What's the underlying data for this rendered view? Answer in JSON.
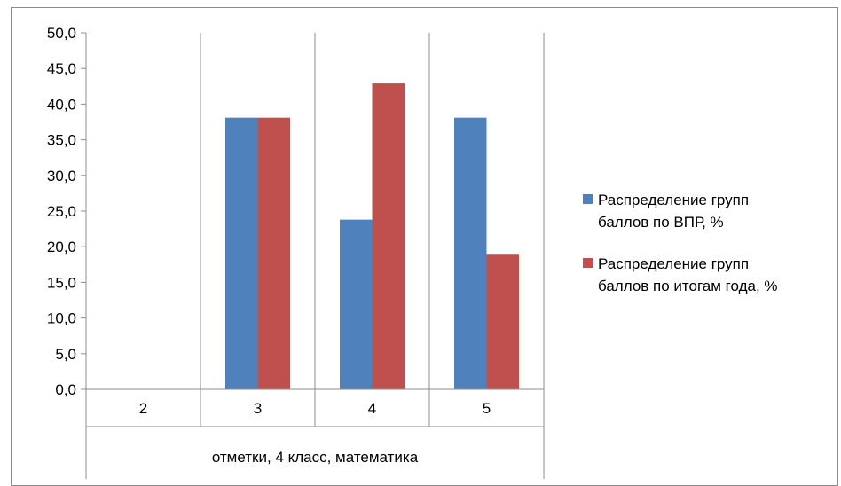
{
  "chart_data": {
    "type": "bar",
    "categories": [
      "2",
      "3",
      "4",
      "5"
    ],
    "category_group_label": "отметки, 4 класс, математика",
    "series": [
      {
        "name": "Распределение групп баллов по ВПР, %",
        "name_lines": [
          "Распределение групп",
          "баллов по ВПР, %"
        ],
        "color": "#4f81bd",
        "values": [
          0.0,
          38.1,
          23.8,
          38.1
        ]
      },
      {
        "name": "Распределение групп баллов по итогам года, %",
        "name_lines": [
          "Распределение групп",
          "баллов по итогам года, %"
        ],
        "color": "#c0504d",
        "values": [
          0.0,
          38.1,
          42.9,
          19.0
        ]
      }
    ],
    "y_ticks": [
      "0,0",
      "5,0",
      "10,0",
      "15,0",
      "20,0",
      "25,0",
      "30,0",
      "35,0",
      "40,0",
      "45,0",
      "50,0"
    ],
    "ylim": [
      0,
      50
    ],
    "y_step": 5,
    "grid": "vertical",
    "legend_position": "right"
  }
}
